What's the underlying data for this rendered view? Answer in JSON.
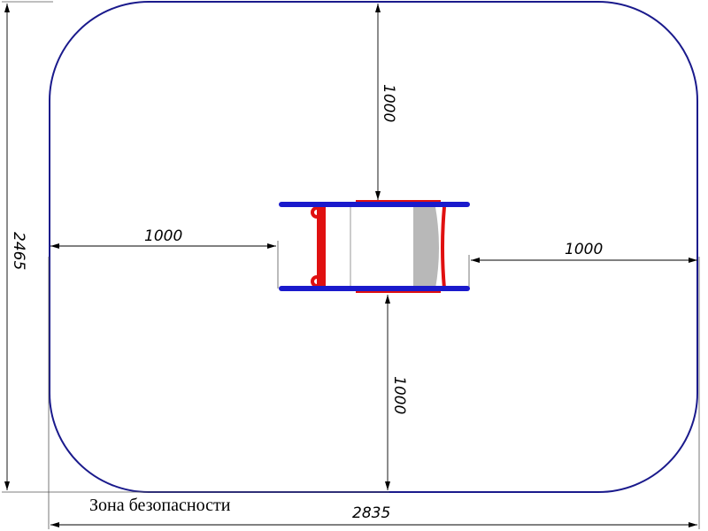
{
  "caption": "Зона безопасности",
  "dimensions": {
    "overall_width": "2835",
    "overall_height": "2465",
    "left_clearance": "1000",
    "right_clearance": "1000",
    "top_clearance": "1000",
    "bottom_clearance": "1000"
  },
  "colors": {
    "zone_outline": "#1a1a8c",
    "frame_blue": "#1a1acc",
    "frame_red": "#e01010",
    "seat_grey": "#b8b8b8"
  }
}
